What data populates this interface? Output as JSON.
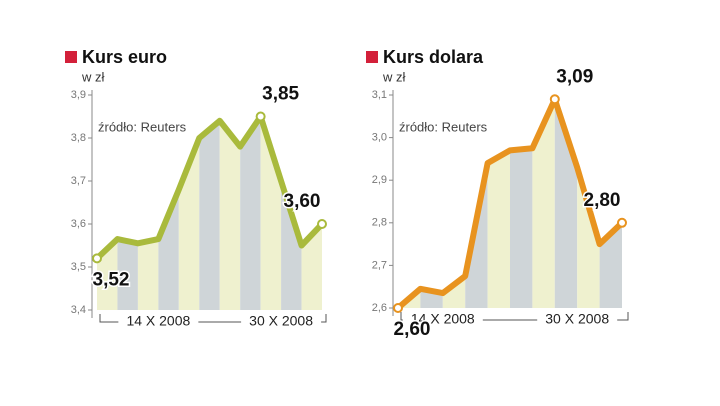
{
  "chart_data": [
    {
      "type": "line",
      "title": "Kurs euro",
      "subtitle": "w zł",
      "annotation": "źródło: Reuters",
      "categories": [
        null,
        null,
        null,
        "14 X 2008",
        null,
        null,
        null,
        null,
        null,
        "30 X 2008",
        null,
        null
      ],
      "series": [
        {
          "name": null,
          "color": "#a9ba3c",
          "values": [
            3.52,
            3.565,
            3.555,
            3.565,
            3.68,
            3.8,
            3.84,
            3.78,
            3.85,
            3.7,
            3.55,
            3.6
          ],
          "value_labels": [
            "3,52",
            null,
            null,
            null,
            null,
            null,
            null,
            null,
            "3,85",
            null,
            null,
            "3,60"
          ]
        }
      ],
      "ylim": [
        3.4,
        3.9
      ],
      "yticks": [
        {
          "value": 3.4,
          "label": "3,4"
        },
        {
          "value": 3.5,
          "label": "3,5"
        },
        {
          "value": 3.6,
          "label": "3,6"
        },
        {
          "value": 3.7,
          "label": "3,7"
        },
        {
          "value": 3.8,
          "label": "3,8"
        },
        {
          "value": 3.9,
          "label": "3,9"
        }
      ]
    },
    {
      "type": "line",
      "title": "Kurs dolara",
      "subtitle": "w zł",
      "annotation": "źródło: Reuters",
      "categories": [
        null,
        null,
        "14 X 2008",
        null,
        null,
        null,
        null,
        null,
        "30 X 2008",
        null,
        null
      ],
      "series": [
        {
          "name": null,
          "color": "#e8931f",
          "values": [
            2.6,
            2.645,
            2.635,
            2.675,
            2.94,
            2.97,
            2.975,
            3.09,
            2.93,
            2.75,
            2.8
          ],
          "value_labels": [
            "2,60",
            null,
            null,
            null,
            null,
            null,
            null,
            "3,09",
            null,
            null,
            "2,80"
          ]
        }
      ],
      "ylim": [
        2.6,
        3.1
      ],
      "yticks": [
        {
          "value": 2.6,
          "label": "2,6"
        },
        {
          "value": 2.7,
          "label": "2,7"
        },
        {
          "value": 2.8,
          "label": "2,8"
        },
        {
          "value": 2.9,
          "label": "2,9"
        },
        {
          "value": 3.0,
          "label": "3,0"
        },
        {
          "value": 3.1,
          "label": "3,1"
        }
      ]
    }
  ]
}
